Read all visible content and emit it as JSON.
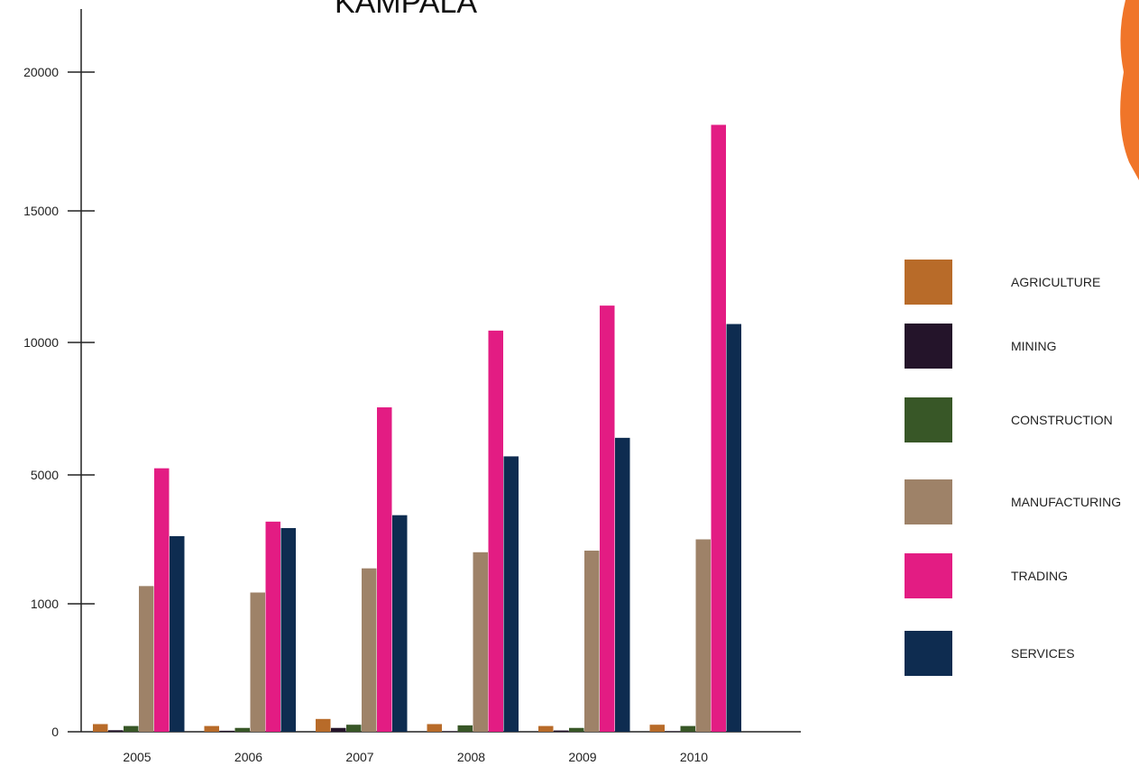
{
  "chart_data": {
    "type": "bar",
    "title": "KAMPALA",
    "xlabel": "",
    "ylabel": "",
    "y_ticks": [
      "0",
      "1000",
      "5000",
      "10000",
      "15000",
      "20000"
    ],
    "categories": [
      "2005",
      "2006",
      "2007",
      "2008",
      "2009",
      "2010"
    ],
    "series": [
      {
        "name": "AGRICULTURE",
        "color": "#b86b29",
        "values": [
          60,
          45,
          100,
          60,
          45,
          55
        ]
      },
      {
        "name": "MINING",
        "color": "#24142a",
        "values": [
          12,
          8,
          30,
          4,
          10,
          4
        ]
      },
      {
        "name": "CONSTRUCTION",
        "color": "#385727",
        "values": [
          45,
          30,
          55,
          50,
          30,
          45
        ]
      },
      {
        "name": "MANUFACTURING",
        "color": "#9e8268",
        "values": [
          1550,
          1350,
          2100,
          2600,
          2650,
          3000
        ]
      },
      {
        "name": "TRADING",
        "color": "#e31c83",
        "values": [
          5250,
          3550,
          7550,
          10450,
          11400,
          18100
        ]
      },
      {
        "name": "SERVICES",
        "color": "#0e2c50",
        "values": [
          3100,
          3350,
          3750,
          5700,
          6400,
          10700
        ]
      }
    ],
    "legend_position": "right",
    "grid": false
  },
  "decoration": {
    "accent_color": "#f07529"
  }
}
